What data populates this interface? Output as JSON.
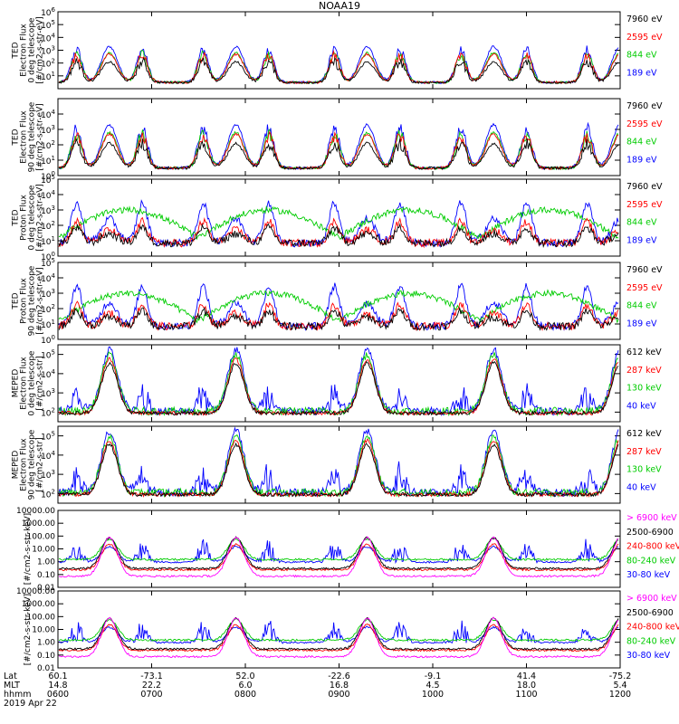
{
  "chart_data": {
    "title": "NOAA19",
    "type": "line",
    "panels": [
      {
        "id": "ted-e-0",
        "ylabel": [
          "TED",
          "Electron Flux",
          "0 deg telescope",
          "[#/cm2-s-str-eV]"
        ],
        "scale": "log",
        "yticks": [
          "10^1",
          "10^2",
          "10^3",
          "10^4",
          "10^5",
          "10^6"
        ],
        "ylim_log": [
          0,
          6
        ],
        "legend": [
          {
            "label": "7960 eV",
            "color": "#000000"
          },
          {
            "label": "2595 eV",
            "color": "#ff0000"
          },
          {
            "label": "844 eV",
            "color": "#00cc00"
          },
          {
            "label": "189 eV",
            "color": "#0000ff"
          }
        ]
      },
      {
        "id": "ted-e-90",
        "ylabel": [
          "TED",
          "Electron Flux",
          "90 deg telescope",
          "[#/cm2-s-str-eV]"
        ],
        "scale": "log",
        "yticks": [
          "10^0",
          "10^1",
          "10^2",
          "10^3",
          "10^4"
        ],
        "ylim_log": [
          0,
          5
        ],
        "legend": [
          {
            "label": "7960 eV",
            "color": "#000000"
          },
          {
            "label": "2595 eV",
            "color": "#ff0000"
          },
          {
            "label": "844 eV",
            "color": "#00cc00"
          },
          {
            "label": "189 eV",
            "color": "#0000ff"
          }
        ]
      },
      {
        "id": "ted-p-0",
        "ylabel": [
          "TED",
          "Proton Flux",
          "0 deg telescope",
          "[#/cm2-s-str-eV]"
        ],
        "scale": "log",
        "yticks": [
          "10^0",
          "10^1",
          "10^2",
          "10^3",
          "10^4",
          "10^5"
        ],
        "ylim_log": [
          0,
          5
        ],
        "legend": [
          {
            "label": "7960 eV",
            "color": "#000000"
          },
          {
            "label": "2595 eV",
            "color": "#ff0000"
          },
          {
            "label": "844 eV",
            "color": "#00cc00"
          },
          {
            "label": "189 eV",
            "color": "#0000ff"
          }
        ]
      },
      {
        "id": "ted-p-90",
        "ylabel": [
          "TED",
          "Proton Flux",
          "90 deg telescope",
          "[#/cm2-s-str-eV]"
        ],
        "scale": "log",
        "yticks": [
          "10^0",
          "10^1",
          "10^2",
          "10^3",
          "10^4",
          "10^5"
        ],
        "ylim_log": [
          0,
          5
        ],
        "legend": [
          {
            "label": "7960 eV",
            "color": "#000000"
          },
          {
            "label": "2595 eV",
            "color": "#ff0000"
          },
          {
            "label": "844 eV",
            "color": "#00cc00"
          },
          {
            "label": "189 eV",
            "color": "#0000ff"
          }
        ]
      },
      {
        "id": "meped-e-0",
        "ylabel": [
          "MEPED",
          "Electron Flux",
          "0 deg telescope",
          "[#/cm2-s-str]"
        ],
        "scale": "log",
        "yticks": [
          "10^2",
          "10^3",
          "10^4",
          "10^5"
        ],
        "ylim_log": [
          1.5,
          5.5
        ],
        "legend": [
          {
            "label": "612 keV",
            "color": "#000000"
          },
          {
            "label": "287 keV",
            "color": "#ff0000"
          },
          {
            "label": "130 keV",
            "color": "#00cc00"
          },
          {
            "label": "40 keV",
            "color": "#0000ff"
          }
        ]
      },
      {
        "id": "meped-e-90",
        "ylabel": [
          "MEPED",
          "Electron Flux",
          "90 deg telescope",
          "[#/cm2-s-str]"
        ],
        "scale": "log",
        "yticks": [
          "10^2",
          "10^3",
          "10^4",
          "10^5"
        ],
        "ylim_log": [
          1.5,
          5.5
        ],
        "legend": [
          {
            "label": "612 keV",
            "color": "#000000"
          },
          {
            "label": "287 keV",
            "color": "#ff0000"
          },
          {
            "label": "130 keV",
            "color": "#00cc00"
          },
          {
            "label": "40 keV",
            "color": "#0000ff"
          }
        ]
      },
      {
        "id": "meped-p-0",
        "ylabel": [
          "[#/cm2-s-str-keV]"
        ],
        "scale": "log",
        "yticks": [
          "0.01",
          "0.10",
          "1.00",
          "10.00",
          "100.00",
          "1000.00",
          "10000.00"
        ],
        "ylim_log": [
          -2,
          4
        ],
        "legend": [
          {
            "label": "> 6900 keV",
            "color": "#ff00ff"
          },
          {
            "label": "2500-6900",
            "color": "#000000"
          },
          {
            "label": "240-800 keV",
            "color": "#ff0000"
          },
          {
            "label": "80-240 keV",
            "color": "#00cc00"
          },
          {
            "label": "30-80 keV",
            "color": "#0000ff"
          }
        ]
      },
      {
        "id": "meped-p-90",
        "ylabel": [
          "[#/cm2-s-str-keV]"
        ],
        "scale": "log",
        "yticks": [
          "0.01",
          "0.10",
          "1.00",
          "10.00",
          "100.00",
          "1000.00",
          "10000.00"
        ],
        "ylim_log": [
          -2,
          4
        ],
        "legend": [
          {
            "label": "> 6900 keV",
            "color": "#ff00ff"
          },
          {
            "label": "2500-6900",
            "color": "#000000"
          },
          {
            "label": "240-800 keV",
            "color": "#ff0000"
          },
          {
            "label": "80-240 keV",
            "color": "#00cc00"
          },
          {
            "label": "30-80 keV",
            "color": "#0000ff"
          }
        ]
      }
    ],
    "x_axis": {
      "xlim_hhmm": [
        "0600",
        "1200"
      ],
      "row_labels": [
        "Lat",
        "MLT",
        "hhmm"
      ],
      "ticks": [
        {
          "lat": "60.1",
          "mlt": "14.8",
          "hhmm": "0600"
        },
        {
          "lat": "-73.1",
          "mlt": "22.2",
          "hhmm": "0700"
        },
        {
          "lat": "52.0",
          "mlt": "6.0",
          "hhmm": "0800"
        },
        {
          "lat": "-22.6",
          "mlt": "16.8",
          "hhmm": "0900"
        },
        {
          "lat": "-9.1",
          "mlt": "4.5",
          "hhmm": "1000"
        },
        {
          "lat": "41.4",
          "mlt": "18.0",
          "hhmm": "1100"
        },
        {
          "lat": "-75.2",
          "mlt": "5.4",
          "hhmm": "1200"
        }
      ],
      "date": "2019 Apr 22"
    },
    "passes_hours_after_0600": [
      0.55,
      1.9,
      3.3,
      4.65,
      6.0
    ]
  }
}
